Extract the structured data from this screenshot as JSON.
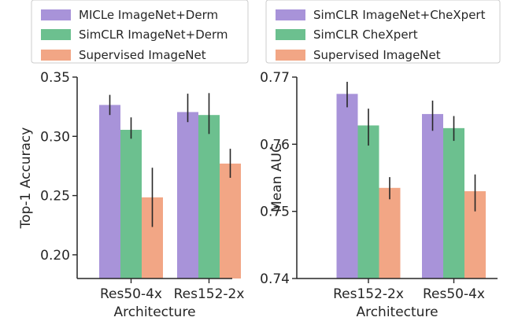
{
  "chart_data": [
    {
      "type": "bar",
      "xlabel": "Architecture",
      "ylabel": "Top-1 Accuracy",
      "ylim": [
        0.18,
        0.35
      ],
      "yticks": [
        "0.20",
        "0.25",
        "0.30",
        "0.35"
      ],
      "categories": [
        "Res50-4x",
        "Res152-2x"
      ],
      "legend_position": "top",
      "series": [
        {
          "name": "MICLe ImageNet+Derm",
          "color": "#a893d9",
          "values": [
            0.3265,
            0.3205
          ],
          "err_low": [
            0.318,
            0.312
          ],
          "err_high": [
            0.335,
            0.336
          ]
        },
        {
          "name": "SimCLR ImageNet+Derm",
          "color": "#6cc08f",
          "values": [
            0.3055,
            0.318
          ],
          "err_low": [
            0.298,
            0.302
          ],
          "err_high": [
            0.316,
            0.3365
          ]
        },
        {
          "name": "Supervised ImageNet",
          "color": "#f2a685",
          "values": [
            0.2485,
            0.277
          ],
          "err_low": [
            0.2235,
            0.265
          ],
          "err_high": [
            0.2735,
            0.2895
          ]
        }
      ]
    },
    {
      "type": "bar",
      "xlabel": "Architecture",
      "ylabel": "Mean AUC",
      "ylim": [
        0.74,
        0.77
      ],
      "yticks": [
        "0.74",
        "0.75",
        "0.76",
        "0.77"
      ],
      "categories": [
        "Res152-2x",
        "Res50-4x"
      ],
      "legend_position": "top",
      "series": [
        {
          "name": "SimCLR ImageNet+CheXpert",
          "color": "#a893d9",
          "values": [
            0.7675,
            0.7645
          ],
          "err_low": [
            0.7655,
            0.762
          ],
          "err_high": [
            0.7693,
            0.7665
          ]
        },
        {
          "name": "SimCLR CheXpert",
          "color": "#6cc08f",
          "values": [
            0.7628,
            0.7624
          ],
          "err_low": [
            0.7598,
            0.7605
          ],
          "err_high": [
            0.7653,
            0.7642
          ]
        },
        {
          "name": "Supervised ImageNet",
          "color": "#f2a685",
          "values": [
            0.7535,
            0.753
          ],
          "err_low": [
            0.7518,
            0.75
          ],
          "err_high": [
            0.7551,
            0.7555
          ]
        }
      ]
    }
  ]
}
